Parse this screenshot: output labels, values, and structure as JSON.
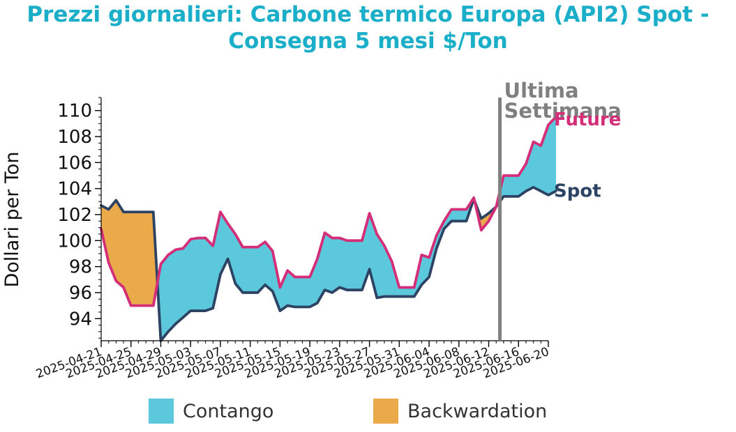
{
  "chart_data": {
    "type": "area",
    "title_lines": [
      "Prezzi giornalieri: Carbone termico Europa (API2) Spot -",
      "Consegna 5 mesi $/Ton"
    ],
    "ylabel": "Dollari per Ton",
    "xlabel": "",
    "ylim": [
      92.3,
      111
    ],
    "yticks": [
      94,
      96,
      98,
      100,
      102,
      104,
      106,
      108,
      110
    ],
    "xlim": [
      "2025-04-21",
      "2025-06-20"
    ],
    "xtick_labels": [
      "2025-04-21",
      "2025-04-25",
      "2025-04-29",
      "2025-05-03",
      "2025-05-07",
      "2025-05-11",
      "2025-05-15",
      "2025-05-19",
      "2025-05-23",
      "2025-05-27",
      "2025-05-31",
      "2025-06-04",
      "2025-06-08",
      "2025-06-12",
      "2025-06-16",
      "2025-06-20"
    ],
    "grid": false,
    "legend_position": "bottom",
    "colors": {
      "contango": "#5bc8dc",
      "backwardation": "#ebaa4a",
      "future": "#d42e79",
      "spot": "#2c4363",
      "divider": "#808080",
      "title": "#1aaec9"
    },
    "legend": [
      {
        "key": "contango",
        "label": "Contango"
      },
      {
        "key": "backwardation",
        "label": "Backwardation"
      }
    ],
    "series": [
      {
        "name": "Future",
        "points": [
          [
            "2025-04-21",
            100.9
          ],
          [
            "2025-04-22",
            98.3
          ],
          [
            "2025-04-23",
            96.9
          ],
          [
            "2025-04-24",
            96.4
          ],
          [
            "2025-04-25",
            95.0
          ],
          [
            "2025-04-26",
            95.0
          ],
          [
            "2025-04-27",
            95.0
          ],
          [
            "2025-04-28",
            95.0
          ],
          [
            "2025-04-29",
            98.2
          ],
          [
            "2025-04-30",
            98.9
          ],
          [
            "2025-05-01",
            99.3
          ],
          [
            "2025-05-02",
            99.4
          ],
          [
            "2025-05-03",
            100.1
          ],
          [
            "2025-05-04",
            100.2
          ],
          [
            "2025-05-05",
            100.2
          ],
          [
            "2025-05-06",
            99.6
          ],
          [
            "2025-05-07",
            102.2
          ],
          [
            "2025-05-08",
            101.3
          ],
          [
            "2025-05-09",
            100.5
          ],
          [
            "2025-05-10",
            99.5
          ],
          [
            "2025-05-11",
            99.5
          ],
          [
            "2025-05-12",
            99.5
          ],
          [
            "2025-05-13",
            99.9
          ],
          [
            "2025-05-14",
            99.2
          ],
          [
            "2025-05-15",
            96.4
          ],
          [
            "2025-05-16",
            97.7
          ],
          [
            "2025-05-17",
            97.2
          ],
          [
            "2025-05-18",
            97.2
          ],
          [
            "2025-05-19",
            97.2
          ],
          [
            "2025-05-20",
            98.6
          ],
          [
            "2025-05-21",
            100.6
          ],
          [
            "2025-05-22",
            100.2
          ],
          [
            "2025-05-23",
            100.2
          ],
          [
            "2025-05-24",
            100.0
          ],
          [
            "2025-05-25",
            100.0
          ],
          [
            "2025-05-26",
            100.0
          ],
          [
            "2025-05-27",
            102.1
          ],
          [
            "2025-05-28",
            100.5
          ],
          [
            "2025-05-29",
            99.6
          ],
          [
            "2025-05-30",
            98.4
          ],
          [
            "2025-05-31",
            96.4
          ],
          [
            "2025-06-01",
            96.4
          ],
          [
            "2025-06-02",
            96.4
          ],
          [
            "2025-06-03",
            98.9
          ],
          [
            "2025-06-04",
            98.7
          ],
          [
            "2025-06-05",
            100.4
          ],
          [
            "2025-06-06",
            101.5
          ],
          [
            "2025-06-07",
            102.4
          ],
          [
            "2025-06-08",
            102.4
          ],
          [
            "2025-06-09",
            102.4
          ],
          [
            "2025-06-10",
            103.3
          ],
          [
            "2025-06-11",
            100.8
          ],
          [
            "2025-06-12",
            101.5
          ],
          [
            "2025-06-13",
            102.6
          ],
          [
            "2025-06-14",
            105.0
          ],
          [
            "2025-06-15",
            105.0
          ],
          [
            "2025-06-16",
            105.0
          ],
          [
            "2025-06-17",
            105.9
          ],
          [
            "2025-06-18",
            107.6
          ],
          [
            "2025-06-19",
            107.3
          ],
          [
            "2025-06-20",
            108.9
          ],
          [
            "2025-06-21",
            109.5
          ]
        ]
      },
      {
        "name": "Spot",
        "points": [
          [
            "2025-04-21",
            102.7
          ],
          [
            "2025-04-22",
            102.4
          ],
          [
            "2025-04-23",
            103.1
          ],
          [
            "2025-04-24",
            102.2
          ],
          [
            "2025-04-25",
            102.2
          ],
          [
            "2025-04-26",
            102.2
          ],
          [
            "2025-04-27",
            102.2
          ],
          [
            "2025-04-28",
            102.2
          ],
          [
            "2025-04-29",
            92.3
          ],
          [
            "2025-04-30",
            93.0
          ],
          [
            "2025-05-01",
            93.6
          ],
          [
            "2025-05-02",
            94.1
          ],
          [
            "2025-05-03",
            94.6
          ],
          [
            "2025-05-04",
            94.6
          ],
          [
            "2025-05-05",
            94.6
          ],
          [
            "2025-05-06",
            94.8
          ],
          [
            "2025-05-07",
            97.4
          ],
          [
            "2025-05-08",
            98.6
          ],
          [
            "2025-05-09",
            96.7
          ],
          [
            "2025-05-10",
            96.0
          ],
          [
            "2025-05-11",
            96.0
          ],
          [
            "2025-05-12",
            96.0
          ],
          [
            "2025-05-13",
            96.6
          ],
          [
            "2025-05-14",
            96.1
          ],
          [
            "2025-05-15",
            94.6
          ],
          [
            "2025-05-16",
            95.0
          ],
          [
            "2025-05-17",
            94.9
          ],
          [
            "2025-05-18",
            94.9
          ],
          [
            "2025-05-19",
            94.9
          ],
          [
            "2025-05-20",
            95.2
          ],
          [
            "2025-05-21",
            96.2
          ],
          [
            "2025-05-22",
            96.0
          ],
          [
            "2025-05-23",
            96.4
          ],
          [
            "2025-05-24",
            96.2
          ],
          [
            "2025-05-25",
            96.2
          ],
          [
            "2025-05-26",
            96.2
          ],
          [
            "2025-05-27",
            97.8
          ],
          [
            "2025-05-28",
            95.6
          ],
          [
            "2025-05-29",
            95.7
          ],
          [
            "2025-05-30",
            95.7
          ],
          [
            "2025-05-31",
            95.7
          ],
          [
            "2025-06-01",
            95.7
          ],
          [
            "2025-06-02",
            95.7
          ],
          [
            "2025-06-03",
            96.6
          ],
          [
            "2025-06-04",
            97.2
          ],
          [
            "2025-06-05",
            99.4
          ],
          [
            "2025-06-06",
            100.9
          ],
          [
            "2025-06-07",
            101.5
          ],
          [
            "2025-06-08",
            101.5
          ],
          [
            "2025-06-09",
            101.5
          ],
          [
            "2025-06-10",
            103.2
          ],
          [
            "2025-06-11",
            101.7
          ],
          [
            "2025-06-12",
            102.1
          ],
          [
            "2025-06-13",
            102.6
          ],
          [
            "2025-06-14",
            103.4
          ],
          [
            "2025-06-15",
            103.4
          ],
          [
            "2025-06-16",
            103.4
          ],
          [
            "2025-06-17",
            103.8
          ],
          [
            "2025-06-18",
            104.1
          ],
          [
            "2025-06-19",
            103.8
          ],
          [
            "2025-06-20",
            103.5
          ],
          [
            "2025-06-21",
            103.8
          ]
        ]
      }
    ],
    "annotations": {
      "divider_date": "2025-06-13.5",
      "divider_label_lines": [
        "Ultima",
        "Settimana"
      ],
      "future_label": "Future",
      "spot_label": "Spot"
    }
  }
}
